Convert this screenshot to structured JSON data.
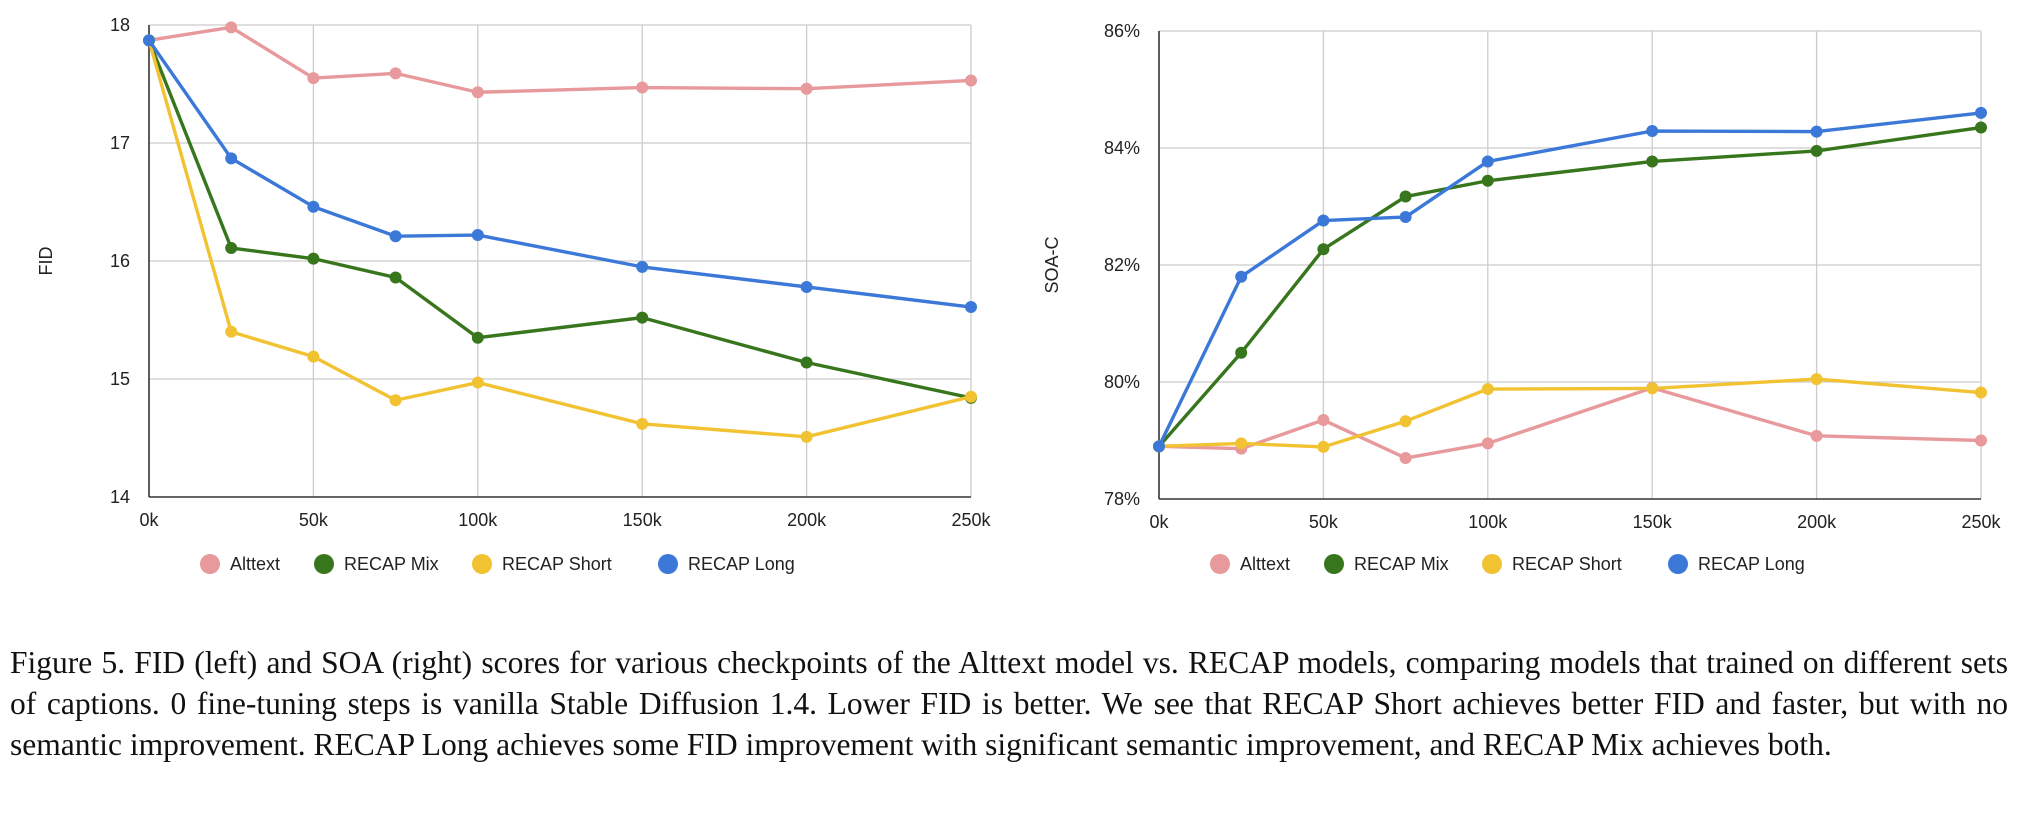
{
  "chart_data": [
    {
      "type": "line",
      "ylabel": "FID",
      "xlabel": "",
      "x": [
        0,
        25000,
        50000,
        75000,
        100000,
        150000,
        200000,
        250000
      ],
      "x_tick_values": [
        0,
        50000,
        100000,
        150000,
        200000,
        250000
      ],
      "x_tick_labels": [
        "0k",
        "50k",
        "100k",
        "150k",
        "200k",
        "250k"
      ],
      "xlim": [
        0,
        250000
      ],
      "ylim": [
        14,
        18
      ],
      "y_tick_values": [
        14,
        15,
        16,
        17,
        18
      ],
      "y_tick_labels": [
        "14",
        "15",
        "16",
        "17",
        "18"
      ],
      "grid": true,
      "legend_position": "bottom",
      "series": [
        {
          "name": "Alttext",
          "color": "#e8999b",
          "values": [
            17.87,
            17.98,
            17.55,
            17.59,
            17.43,
            17.47,
            17.46,
            17.53
          ]
        },
        {
          "name": "RECAP Mix",
          "color": "#38761d",
          "values": [
            17.87,
            16.11,
            16.02,
            15.86,
            15.35,
            15.52,
            15.14,
            14.84
          ]
        },
        {
          "name": "RECAP Short",
          "color": "#f1c232",
          "values": [
            17.87,
            15.4,
            15.19,
            14.82,
            14.97,
            14.62,
            14.51,
            14.85
          ]
        },
        {
          "name": "RECAP Long",
          "color": "#3c78d8",
          "values": [
            17.87,
            16.87,
            16.46,
            16.21,
            16.22,
            15.95,
            15.78,
            15.61
          ]
        }
      ]
    },
    {
      "type": "line",
      "ylabel": "SOA-C",
      "xlabel": "",
      "x": [
        0,
        25000,
        50000,
        75000,
        100000,
        150000,
        200000,
        250000
      ],
      "x_tick_values": [
        0,
        50000,
        100000,
        150000,
        200000,
        250000
      ],
      "x_tick_labels": [
        "0k",
        "50k",
        "100k",
        "150k",
        "200k",
        "250k"
      ],
      "xlim": [
        0,
        250000
      ],
      "ylim": [
        78,
        86
      ],
      "y_tick_values": [
        78,
        80,
        82,
        84,
        86
      ],
      "y_tick_labels": [
        "78%",
        "80%",
        "82%",
        "84%",
        "86%"
      ],
      "grid": true,
      "legend_position": "bottom",
      "series": [
        {
          "name": "Alttext",
          "color": "#e8999b",
          "values": [
            78.9,
            78.86,
            79.35,
            78.7,
            78.95,
            79.9,
            79.08,
            79.0
          ]
        },
        {
          "name": "RECAP Mix",
          "color": "#38761d",
          "values": [
            78.9,
            80.5,
            82.27,
            83.17,
            83.44,
            83.77,
            83.95,
            84.35
          ]
        },
        {
          "name": "RECAP Short",
          "color": "#f1c232",
          "values": [
            78.9,
            78.95,
            78.89,
            79.33,
            79.88,
            79.89,
            80.05,
            79.82
          ]
        },
        {
          "name": "RECAP Long",
          "color": "#3c78d8",
          "values": [
            78.9,
            81.8,
            82.76,
            82.82,
            83.77,
            84.29,
            84.28,
            84.6
          ]
        }
      ]
    }
  ],
  "caption": {
    "text": "Figure 5. FID (left) and SOA (right) scores for various checkpoints of the Alttext model vs. RECAP models, comparing models that trained on different sets of captions. 0 fine-tuning steps is vanilla Stable Diffusion 1.4. Lower FID is better. We see that RECAP Short achieves better FID and faster, but with no semantic improvement. RECAP Long achieves some FID improvement with significant semantic improvement, and RECAP Mix achieves both."
  }
}
